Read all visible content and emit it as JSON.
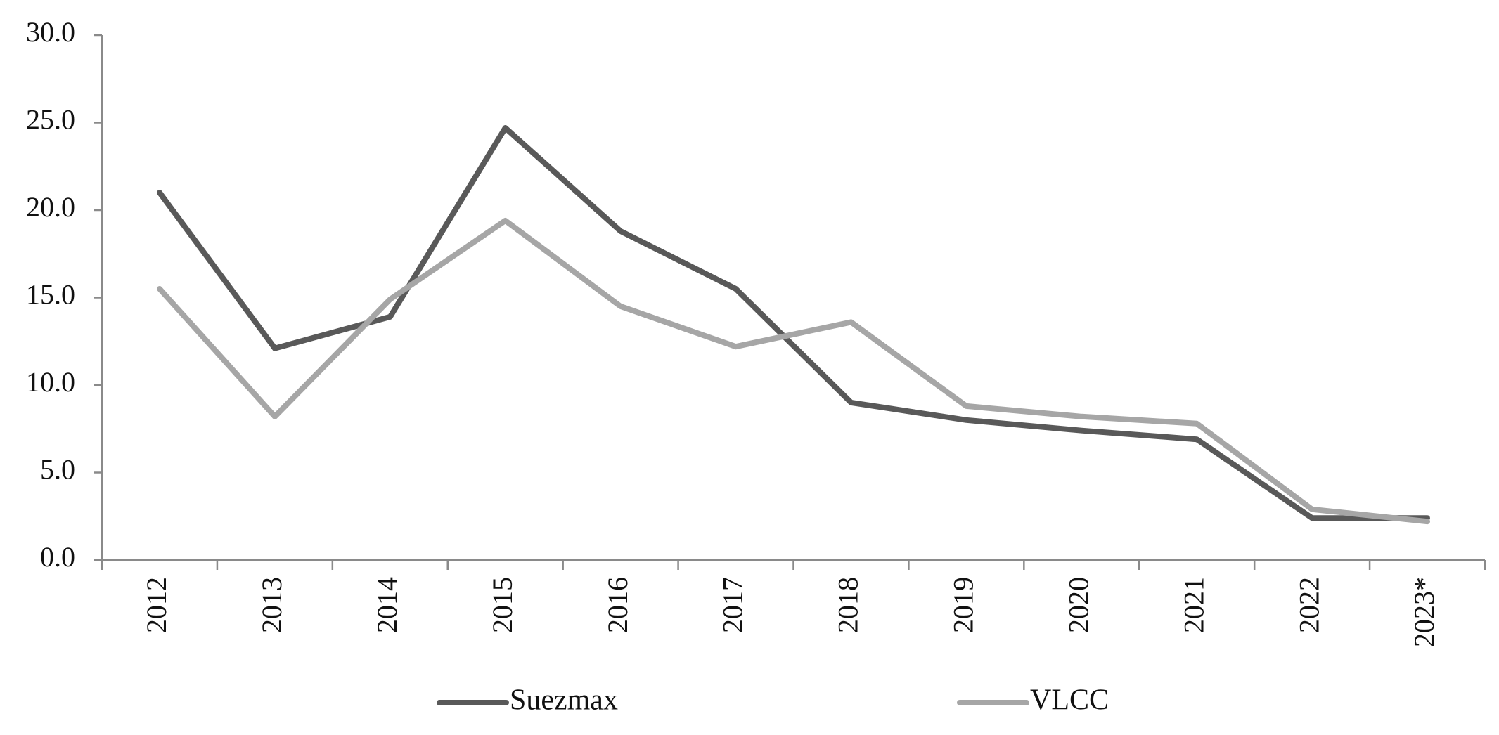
{
  "chart_data": {
    "type": "line",
    "title": "",
    "xlabel": "",
    "ylabel": "",
    "categories": [
      "2012",
      "2013",
      "2014",
      "2015",
      "2016",
      "2017",
      "2018",
      "2019",
      "2020",
      "2021",
      "2022",
      "2023*"
    ],
    "ylim": [
      0,
      30
    ],
    "yticks": [
      "0.0",
      "5.0",
      "10.0",
      "15.0",
      "20.0",
      "25.0",
      "30.0"
    ],
    "ytick_values": [
      0,
      5,
      10,
      15,
      20,
      25,
      30
    ],
    "grid": false,
    "legend_position": "bottom",
    "series": [
      {
        "name": "Suezmax",
        "color": "#595959",
        "values": [
          21.0,
          12.1,
          13.9,
          24.7,
          18.8,
          15.5,
          9.0,
          8.0,
          7.4,
          6.9,
          2.4,
          2.4
        ]
      },
      {
        "name": "VLCC",
        "color": "#a6a6a6",
        "values": [
          15.5,
          8.2,
          14.9,
          19.4,
          14.5,
          12.2,
          13.6,
          8.8,
          8.2,
          7.8,
          2.9,
          2.2
        ]
      }
    ]
  }
}
